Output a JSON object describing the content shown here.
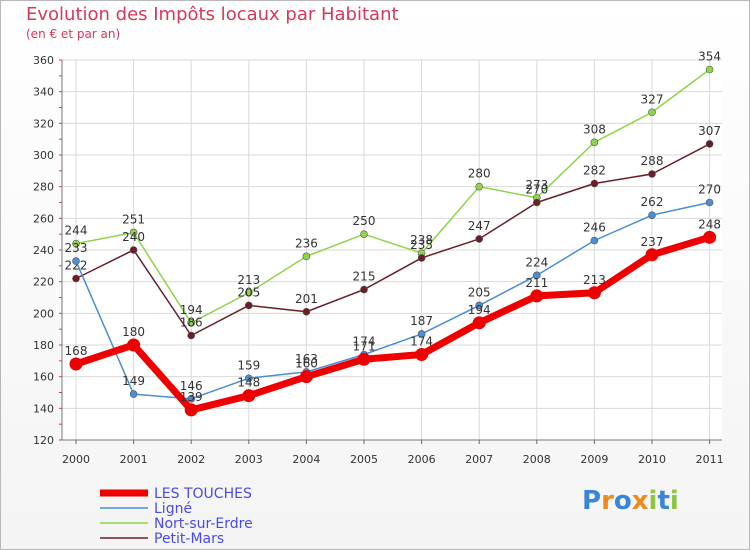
{
  "chart_data": {
    "type": "line",
    "title": "Evolution des Impôts locaux par Habitant",
    "subtitle": "(en € et par an)",
    "xlabel": "",
    "ylabel": "",
    "categories": [
      "2000",
      "2001",
      "2002",
      "2003",
      "2004",
      "2005",
      "2006",
      "2007",
      "2008",
      "2009",
      "2010",
      "2011"
    ],
    "ylim": [
      120,
      360
    ],
    "yticks": [
      120,
      140,
      160,
      180,
      200,
      220,
      240,
      260,
      280,
      300,
      320,
      340,
      360
    ],
    "grid": true,
    "legend_position": "bottom-left",
    "series": [
      {
        "name": "Nort-sur-Erdre",
        "color": "#8fd44a",
        "values": [
          244,
          251,
          194,
          213,
          236,
          250,
          238,
          280,
          273,
          308,
          327,
          354
        ]
      },
      {
        "name": "Petit-Mars",
        "color": "#6b1d2a",
        "values": [
          222,
          240,
          186,
          205,
          201,
          215,
          235,
          247,
          270,
          282,
          288,
          307
        ]
      },
      {
        "name": "Ligné",
        "color": "#4a8ed4",
        "values": [
          233,
          149,
          146,
          159,
          163,
          174,
          187,
          205,
          224,
          246,
          262,
          270
        ]
      },
      {
        "name": "LES TOUCHES",
        "color": "#ee0000",
        "values": [
          168,
          180,
          139,
          148,
          160,
          171,
          174,
          194,
          211,
          213,
          237,
          248
        ]
      }
    ],
    "legend_order": [
      "LES TOUCHES",
      "Ligné",
      "Nort-sur-Erdre",
      "Petit-Mars"
    ]
  },
  "logo": {
    "text": "Proxiti",
    "letters": [
      "P",
      "r",
      "o",
      "x",
      "i",
      "t",
      "i"
    ],
    "colors": [
      "#3a86d6",
      "#f08a1c",
      "#3a86d6",
      "#f08a1c",
      "#8cc63f",
      "#3a86d6",
      "#8cc63f"
    ]
  }
}
